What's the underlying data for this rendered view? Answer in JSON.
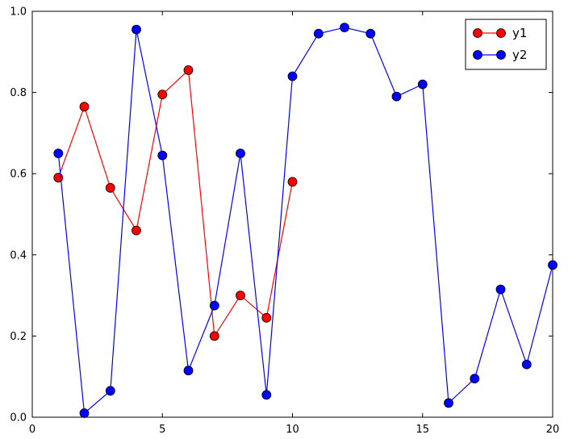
{
  "figure": {
    "background": "#ffffff",
    "plot_background": "#ffffff",
    "axis_color": "#000000"
  },
  "chart_data": {
    "type": "line",
    "title": "",
    "xlabel": "",
    "ylabel": "",
    "xlim": [
      0,
      20
    ],
    "ylim": [
      0.0,
      1.0
    ],
    "grid": false,
    "marker": "circle",
    "marker_edge_color": "#000000",
    "xticks": [
      0,
      5,
      10,
      15,
      20
    ],
    "xticklabels": [
      "0",
      "5",
      "10",
      "15",
      "20"
    ],
    "yticks": [
      0.0,
      0.2,
      0.4,
      0.6,
      0.8,
      1.0
    ],
    "yticklabels": [
      "0.0",
      "0.2",
      "0.4",
      "0.6",
      "0.8",
      "1.0"
    ],
    "legend": {
      "position": "upper right",
      "entries": [
        "y1",
        "y2"
      ]
    },
    "series": [
      {
        "name": "y1",
        "color": "#ff0000",
        "x": [
          1,
          2,
          3,
          4,
          5,
          6,
          7,
          8,
          9,
          10
        ],
        "values": [
          0.59,
          0.765,
          0.565,
          0.46,
          0.795,
          0.855,
          0.2,
          0.3,
          0.245,
          0.58
        ]
      },
      {
        "name": "y2",
        "color": "#0000ff",
        "x": [
          1,
          2,
          3,
          4,
          5,
          6,
          7,
          8,
          9,
          10,
          11,
          12,
          13,
          14,
          15,
          16,
          17,
          18,
          19,
          20
        ],
        "values": [
          0.65,
          0.01,
          0.065,
          0.955,
          0.645,
          0.115,
          0.275,
          0.65,
          0.055,
          0.84,
          0.945,
          0.96,
          0.945,
          0.79,
          0.82,
          0.035,
          0.095,
          0.315,
          0.13,
          0.375
        ]
      }
    ]
  }
}
